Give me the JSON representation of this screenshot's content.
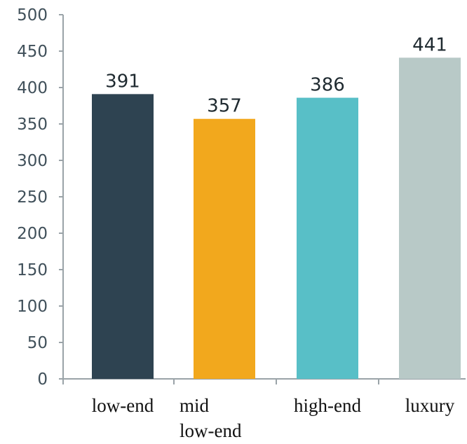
{
  "chart_data": {
    "type": "bar",
    "categories": [
      "low-end",
      "mid\nlow-end",
      "high-end",
      "luxury"
    ],
    "values": [
      391,
      357,
      386,
      441
    ],
    "data_labels": [
      "391",
      "357",
      "386",
      "441"
    ],
    "colors": [
      "#2e4351",
      "#f2a81d",
      "#58bfc7",
      "#b8c9c7"
    ],
    "yticks": [
      0,
      50,
      100,
      150,
      200,
      250,
      300,
      350,
      400,
      450,
      500
    ],
    "ylim": [
      0,
      500
    ],
    "title": "",
    "xlabel": "",
    "ylabel": "",
    "grid": false,
    "legend": "none"
  }
}
